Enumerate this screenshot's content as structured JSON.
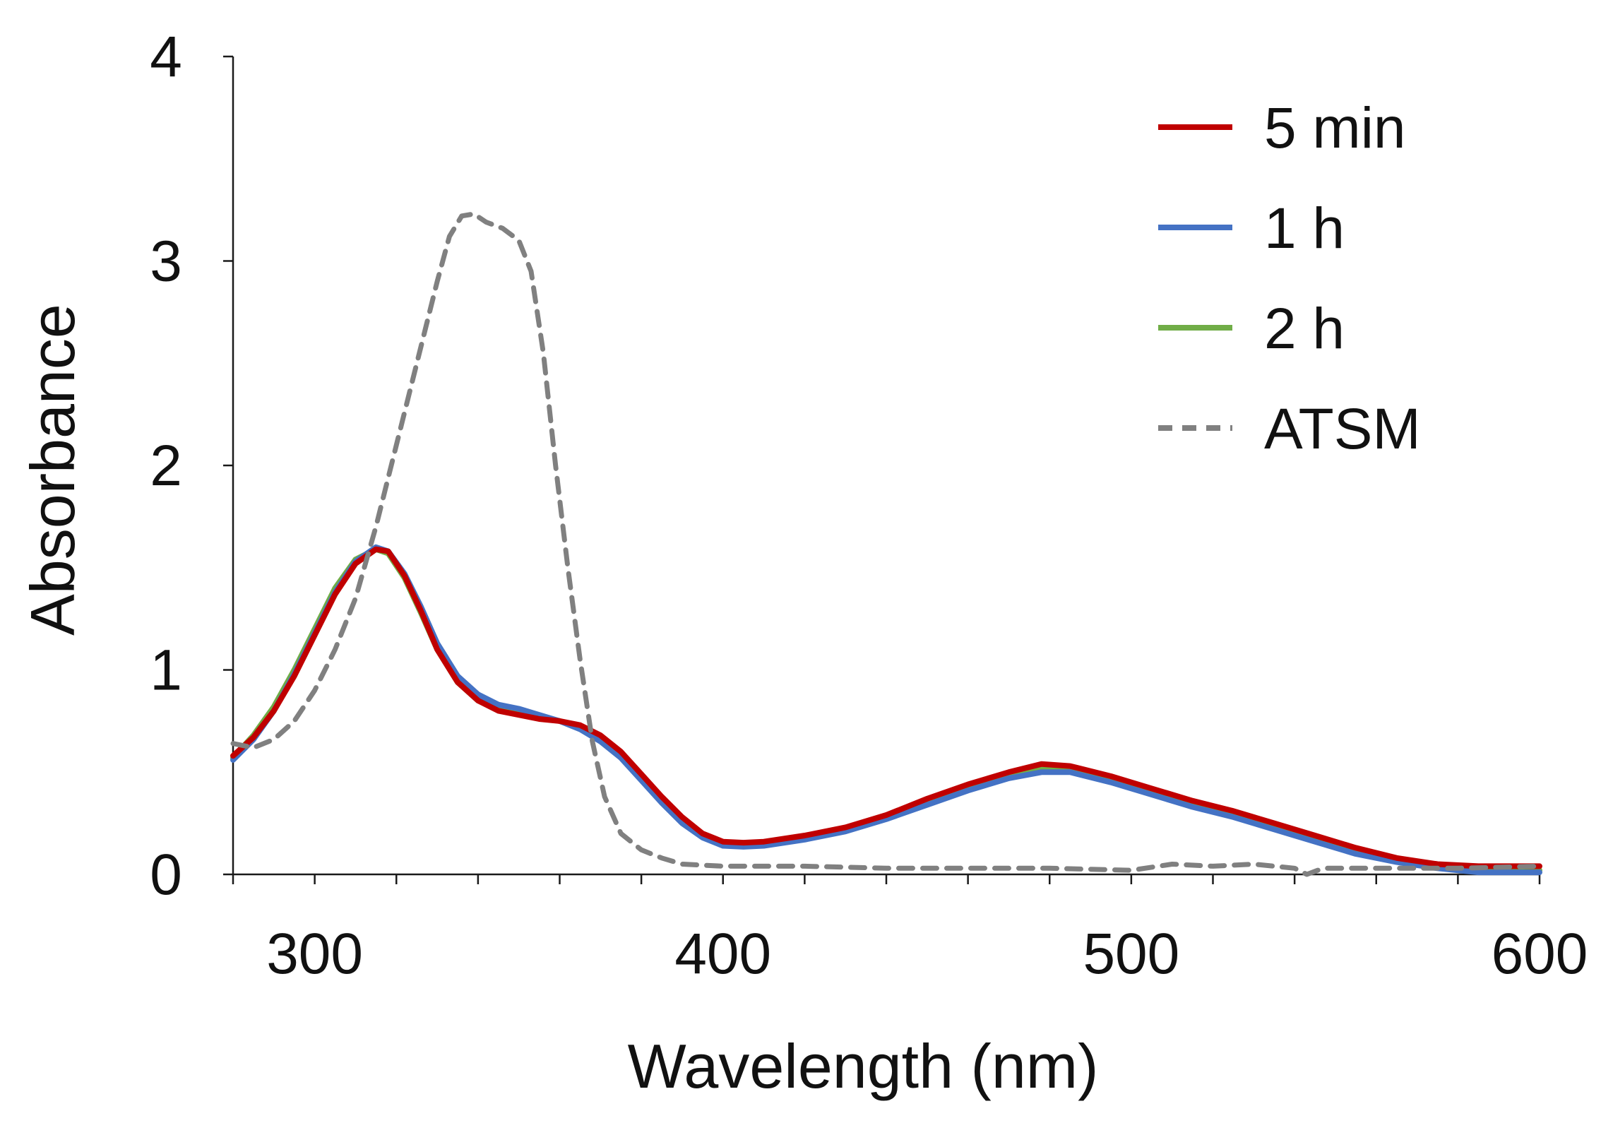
{
  "chart_data": {
    "type": "line",
    "title": "",
    "xlabel": "Wavelength (nm)",
    "ylabel": "Absorbance",
    "xlim": [
      280,
      600
    ],
    "ylim": [
      0,
      4
    ],
    "x_tick_labels": [
      "300",
      "400",
      "500",
      "600"
    ],
    "x_tick_values": [
      300,
      400,
      500,
      600
    ],
    "x_minor_ticks": [
      280,
      300,
      320,
      340,
      360,
      380,
      400,
      420,
      440,
      460,
      480,
      500,
      520,
      540,
      560,
      580,
      600
    ],
    "y_tick_labels": [
      "0",
      "1",
      "2",
      "3",
      "4"
    ],
    "y_tick_values": [
      0,
      1,
      2,
      3,
      4
    ],
    "grid": false,
    "legend_position": "top-right",
    "series": [
      {
        "name": "2 h",
        "color": "#70ad47",
        "dash": "solid",
        "points": [
          [
            280,
            0.57
          ],
          [
            285,
            0.68
          ],
          [
            290,
            0.82
          ],
          [
            295,
            1.0
          ],
          [
            300,
            1.2
          ],
          [
            305,
            1.4
          ],
          [
            310,
            1.54
          ],
          [
            315,
            1.59
          ],
          [
            318,
            1.57
          ],
          [
            322,
            1.45
          ],
          [
            326,
            1.28
          ],
          [
            330,
            1.1
          ],
          [
            335,
            0.94
          ],
          [
            340,
            0.85
          ],
          [
            345,
            0.81
          ],
          [
            350,
            0.79
          ],
          [
            355,
            0.77
          ],
          [
            360,
            0.75
          ],
          [
            365,
            0.72
          ],
          [
            370,
            0.67
          ],
          [
            375,
            0.59
          ],
          [
            380,
            0.48
          ],
          [
            385,
            0.37
          ],
          [
            390,
            0.27
          ],
          [
            395,
            0.19
          ],
          [
            400,
            0.15
          ],
          [
            405,
            0.145
          ],
          [
            410,
            0.15
          ],
          [
            420,
            0.18
          ],
          [
            430,
            0.22
          ],
          [
            440,
            0.28
          ],
          [
            450,
            0.36
          ],
          [
            460,
            0.43
          ],
          [
            470,
            0.49
          ],
          [
            478,
            0.52
          ],
          [
            485,
            0.51
          ],
          [
            495,
            0.46
          ],
          [
            505,
            0.4
          ],
          [
            515,
            0.34
          ],
          [
            525,
            0.29
          ],
          [
            535,
            0.23
          ],
          [
            545,
            0.17
          ],
          [
            555,
            0.11
          ],
          [
            565,
            0.07
          ],
          [
            575,
            0.04
          ],
          [
            585,
            0.02
          ],
          [
            600,
            0.02
          ]
        ]
      },
      {
        "name": "1 h",
        "color": "#4472c4",
        "dash": "solid",
        "points": [
          [
            280,
            0.56
          ],
          [
            285,
            0.66
          ],
          [
            290,
            0.8
          ],
          [
            295,
            0.98
          ],
          [
            300,
            1.18
          ],
          [
            305,
            1.38
          ],
          [
            310,
            1.53
          ],
          [
            315,
            1.6
          ],
          [
            318,
            1.58
          ],
          [
            322,
            1.47
          ],
          [
            326,
            1.31
          ],
          [
            330,
            1.13
          ],
          [
            335,
            0.97
          ],
          [
            340,
            0.88
          ],
          [
            345,
            0.83
          ],
          [
            350,
            0.81
          ],
          [
            355,
            0.78
          ],
          [
            360,
            0.75
          ],
          [
            365,
            0.71
          ],
          [
            370,
            0.65
          ],
          [
            375,
            0.57
          ],
          [
            380,
            0.46
          ],
          [
            385,
            0.35
          ],
          [
            390,
            0.25
          ],
          [
            395,
            0.18
          ],
          [
            400,
            0.14
          ],
          [
            405,
            0.135
          ],
          [
            410,
            0.14
          ],
          [
            420,
            0.17
          ],
          [
            430,
            0.21
          ],
          [
            440,
            0.27
          ],
          [
            450,
            0.34
          ],
          [
            460,
            0.41
          ],
          [
            470,
            0.47
          ],
          [
            478,
            0.5
          ],
          [
            485,
            0.5
          ],
          [
            495,
            0.45
          ],
          [
            505,
            0.39
          ],
          [
            515,
            0.33
          ],
          [
            525,
            0.28
          ],
          [
            535,
            0.22
          ],
          [
            545,
            0.16
          ],
          [
            555,
            0.1
          ],
          [
            565,
            0.06
          ],
          [
            575,
            0.03
          ],
          [
            585,
            0.01
          ],
          [
            600,
            0.01
          ]
        ]
      },
      {
        "name": "5 min",
        "color": "#c00000",
        "dash": "solid",
        "points": [
          [
            280,
            0.58
          ],
          [
            285,
            0.67
          ],
          [
            290,
            0.8
          ],
          [
            295,
            0.97
          ],
          [
            300,
            1.17
          ],
          [
            305,
            1.37
          ],
          [
            310,
            1.52
          ],
          [
            315,
            1.59
          ],
          [
            318,
            1.58
          ],
          [
            322,
            1.46
          ],
          [
            326,
            1.29
          ],
          [
            330,
            1.1
          ],
          [
            335,
            0.94
          ],
          [
            340,
            0.85
          ],
          [
            345,
            0.8
          ],
          [
            350,
            0.78
          ],
          [
            355,
            0.76
          ],
          [
            360,
            0.75
          ],
          [
            365,
            0.73
          ],
          [
            370,
            0.68
          ],
          [
            375,
            0.6
          ],
          [
            380,
            0.49
          ],
          [
            385,
            0.38
          ],
          [
            390,
            0.28
          ],
          [
            395,
            0.2
          ],
          [
            400,
            0.16
          ],
          [
            405,
            0.155
          ],
          [
            410,
            0.16
          ],
          [
            420,
            0.19
          ],
          [
            430,
            0.23
          ],
          [
            440,
            0.29
          ],
          [
            450,
            0.37
          ],
          [
            460,
            0.44
          ],
          [
            470,
            0.5
          ],
          [
            478,
            0.54
          ],
          [
            485,
            0.53
          ],
          [
            495,
            0.48
          ],
          [
            505,
            0.42
          ],
          [
            515,
            0.36
          ],
          [
            525,
            0.31
          ],
          [
            535,
            0.25
          ],
          [
            545,
            0.19
          ],
          [
            555,
            0.13
          ],
          [
            565,
            0.08
          ],
          [
            575,
            0.05
          ],
          [
            585,
            0.04
          ],
          [
            600,
            0.04
          ]
        ]
      },
      {
        "name": "ATSM",
        "color": "#808080",
        "dash": "dashed",
        "points": [
          [
            280,
            0.64
          ],
          [
            285,
            0.62
          ],
          [
            290,
            0.66
          ],
          [
            295,
            0.75
          ],
          [
            300,
            0.9
          ],
          [
            305,
            1.1
          ],
          [
            310,
            1.35
          ],
          [
            315,
            1.7
          ],
          [
            320,
            2.1
          ],
          [
            325,
            2.5
          ],
          [
            330,
            2.9
          ],
          [
            333,
            3.12
          ],
          [
            336,
            3.22
          ],
          [
            339,
            3.23
          ],
          [
            342,
            3.19
          ],
          [
            346,
            3.16
          ],
          [
            350,
            3.1
          ],
          [
            353,
            2.95
          ],
          [
            356,
            2.55
          ],
          [
            359,
            2.0
          ],
          [
            362,
            1.5
          ],
          [
            365,
            1.05
          ],
          [
            368,
            0.65
          ],
          [
            371,
            0.38
          ],
          [
            375,
            0.2
          ],
          [
            380,
            0.12
          ],
          [
            385,
            0.08
          ],
          [
            390,
            0.05
          ],
          [
            400,
            0.04
          ],
          [
            420,
            0.04
          ],
          [
            440,
            0.03
          ],
          [
            460,
            0.03
          ],
          [
            480,
            0.03
          ],
          [
            500,
            0.02
          ],
          [
            510,
            0.05
          ],
          [
            520,
            0.04
          ],
          [
            530,
            0.05
          ],
          [
            540,
            0.03
          ],
          [
            543,
            0.0
          ],
          [
            547,
            0.03
          ],
          [
            560,
            0.03
          ],
          [
            580,
            0.03
          ],
          [
            600,
            0.04
          ]
        ]
      }
    ]
  },
  "legend": {
    "items": [
      {
        "label": "5 min",
        "color": "#c00000",
        "dash": "solid"
      },
      {
        "label": "1 h",
        "color": "#4472c4",
        "dash": "solid"
      },
      {
        "label": "2 h",
        "color": "#70ad47",
        "dash": "solid"
      },
      {
        "label": "ATSM",
        "color": "#808080",
        "dash": "dashed"
      }
    ]
  }
}
